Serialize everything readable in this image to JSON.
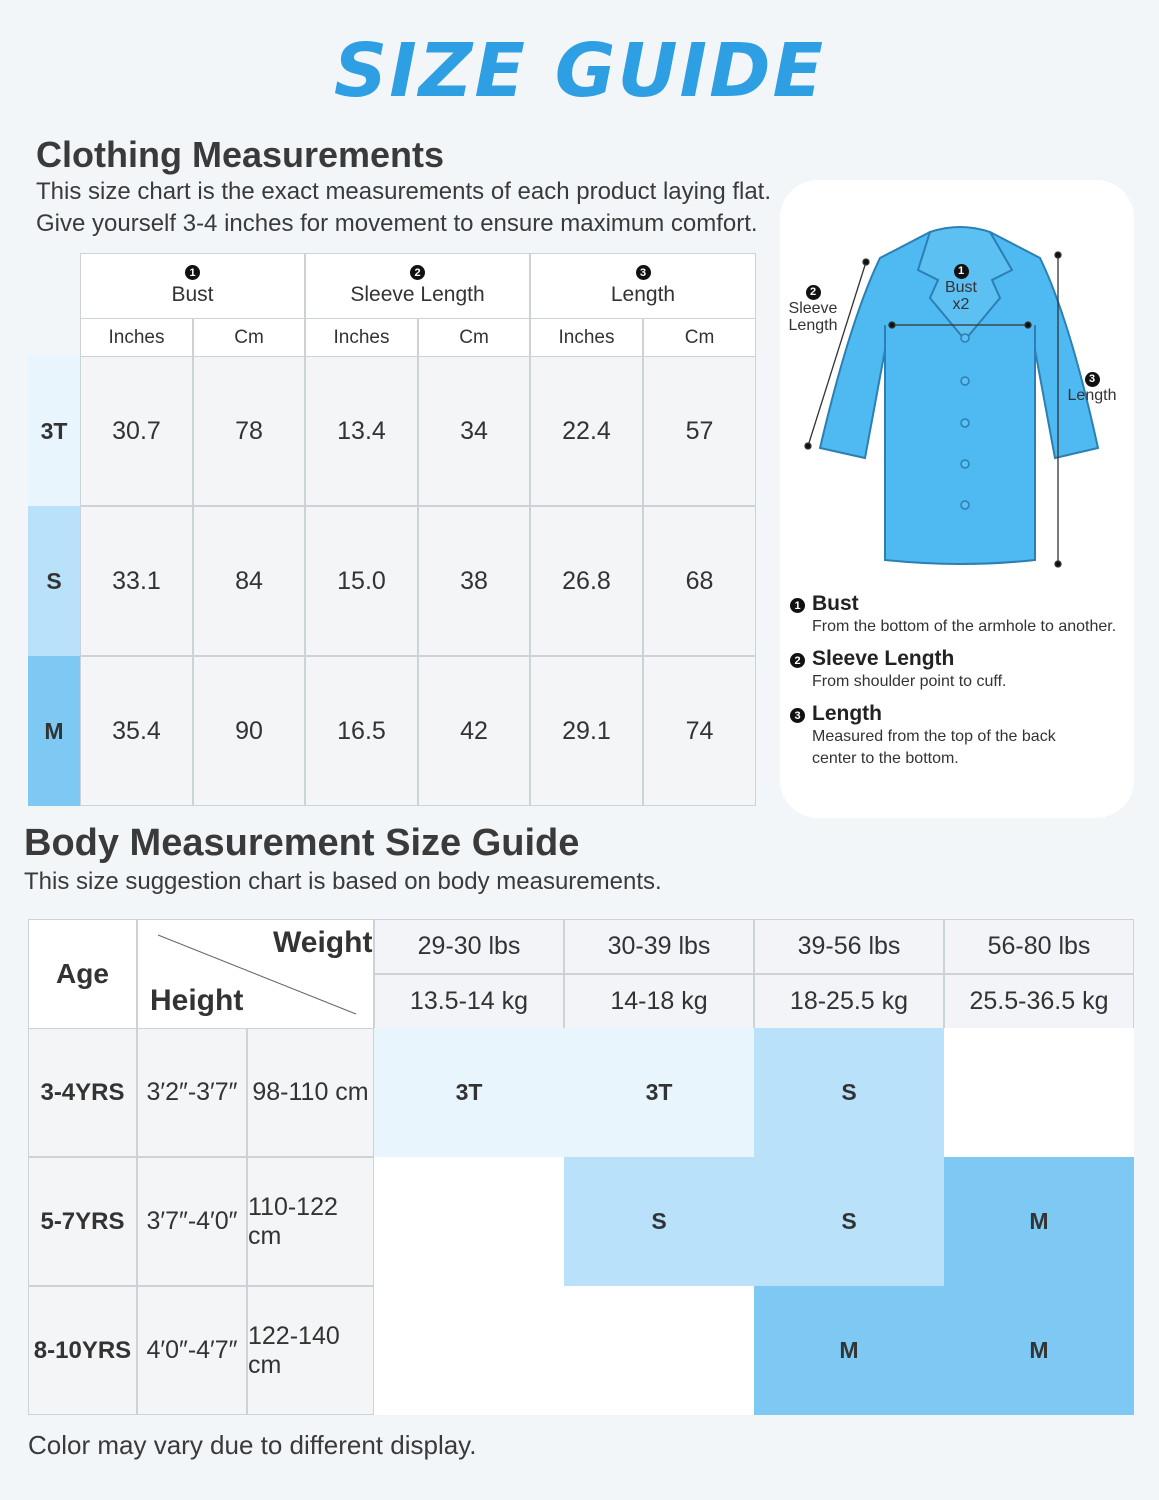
{
  "title": "SIZE GUIDE",
  "clothing": {
    "heading": "Clothing Measurements",
    "description": [
      "This size chart is the exact measurements of each product laying flat.",
      "Give yourself 3-4 inches for movement to ensure maximum comfort."
    ],
    "table": {
      "groups": [
        {
          "number": "1",
          "label": "Bust"
        },
        {
          "number": "2",
          "label": "Sleeve Length"
        },
        {
          "number": "3",
          "label": "Length"
        }
      ],
      "units": [
        "Inches",
        "Cm",
        "Inches",
        "Cm",
        "Inches",
        "Cm"
      ],
      "rows": [
        {
          "size": "3T",
          "color": "#e8f5fd",
          "values": [
            "30.7",
            "78",
            "13.4",
            "34",
            "22.4",
            "57"
          ]
        },
        {
          "size": "S",
          "color": "#b9e2fa",
          "values": [
            "33.1",
            "84",
            "15.0",
            "38",
            "26.8",
            "68"
          ]
        },
        {
          "size": "M",
          "color": "#7ec9f3",
          "values": [
            "35.4",
            "90",
            "16.5",
            "42",
            "29.1",
            "74"
          ]
        }
      ]
    }
  },
  "diagram": {
    "labels": [
      {
        "number": "1",
        "text": [
          "Bust",
          "x2"
        ]
      },
      {
        "number": "2",
        "text": [
          "Sleeve",
          "Length"
        ]
      },
      {
        "number": "3",
        "text": [
          "Length"
        ]
      }
    ],
    "legend": [
      {
        "number": "1",
        "name": "Bust",
        "description": [
          "From the bottom of the armhole to another."
        ]
      },
      {
        "number": "2",
        "name": "Sleeve Length",
        "description": [
          "From shoulder point to cuff."
        ]
      },
      {
        "number": "3",
        "name": "Length",
        "description": [
          "Measured from the top of the back",
          "center to the bottom."
        ]
      }
    ]
  },
  "body": {
    "heading": "Body Measurement Size Guide",
    "description": "This size suggestion chart is based on body measurements.",
    "table": {
      "age_header": "Age",
      "weight_header": "Weight",
      "height_header": "Height",
      "weights": [
        {
          "lbs": "29-30 lbs",
          "kg": "13.5-14 kg"
        },
        {
          "lbs": "30-39 lbs",
          "kg": "14-18 kg"
        },
        {
          "lbs": "39-56 lbs",
          "kg": "18-25.5 kg"
        },
        {
          "lbs": "56-80 lbs",
          "kg": "25.5-36.5 kg"
        }
      ],
      "rows": [
        {
          "age": "3-4YRS",
          "height_ft": "3′2″-3′7″",
          "height_cm": "98-110 cm",
          "sizes": [
            "3T",
            "3T",
            "S",
            null
          ]
        },
        {
          "age": "5-7YRS",
          "height_ft": "3′7″-4′0″",
          "height_cm": "110-122 cm",
          "sizes": [
            null,
            "S",
            "S",
            "M"
          ]
        },
        {
          "age": "8-10YRS",
          "height_ft": "4′0″-4′7″",
          "height_cm": "122-140 cm",
          "sizes": [
            null,
            null,
            "M",
            "M"
          ]
        }
      ]
    }
  },
  "footer": "Color may vary due to different display."
}
